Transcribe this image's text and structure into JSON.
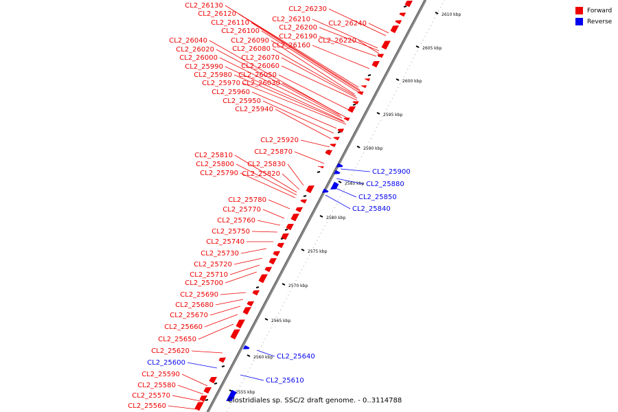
{
  "legend": {
    "forward": {
      "label": "Forward",
      "color": "#ee0000"
    },
    "reverse": {
      "label": "Reverse",
      "color": "#0000ee"
    }
  },
  "caption": "Clostridiales sp. SSC/2 draft genome. - 0..3114788",
  "axis": {
    "unit": "kbp",
    "ticks": [
      2555,
      2560,
      2565,
      2570,
      2575,
      2580,
      2585,
      2590,
      2595,
      2600,
      2605,
      2610
    ]
  },
  "forward_genes": [
    "CL2_26130",
    "CL2_26120",
    "CL2_26110",
    "CL2_26100",
    "CL2_26040",
    "CL2_26020",
    "CL2_26000",
    "CL2_25990",
    "CL2_25980",
    "CL2_25970",
    "CL2_25960",
    "CL2_25950",
    "CL2_25940",
    "CL2_26090",
    "CL2_26080",
    "CL2_26070",
    "CL2_26060",
    "CL2_26050",
    "CL2_26030",
    "CL2_26230",
    "CL2_26210",
    "CL2_26200",
    "CL2_26190",
    "CL2_26160",
    "CL2_26240",
    "CL2_26220",
    "CL2_25920",
    "CL2_25870",
    "CL2_25830",
    "CL2_25820",
    "CL2_25810",
    "CL2_25800",
    "CL2_25790",
    "CL2_25780",
    "CL2_25770",
    "CL2_25760",
    "CL2_25750",
    "CL2_25740",
    "CL2_25730",
    "CL2_25720",
    "CL2_25710",
    "CL2_25700",
    "CL2_25690",
    "CL2_25680",
    "CL2_25670",
    "CL2_25660",
    "CL2_25650",
    "CL2_25620",
    "CL2_25590",
    "CL2_25580",
    "CL2_25570",
    "CL2_25560"
  ],
  "reverse_genes": [
    "CL2_25900",
    "CL2_25880",
    "CL2_25850",
    "CL2_25840",
    "CL2_25640",
    "CL2_25610",
    "CL2_25600"
  ]
}
